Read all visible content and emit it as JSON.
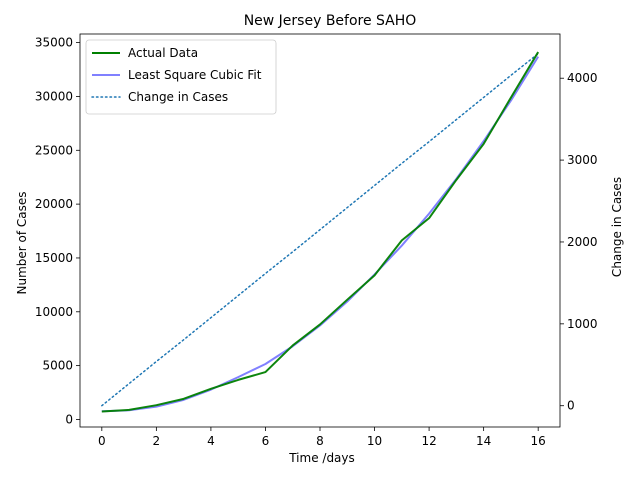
{
  "chart_data": {
    "type": "line",
    "title": "New Jersey Before SAHO",
    "xlabel": "Time /days",
    "ylabel": "Number of Cases",
    "y2label": "Change in Cases",
    "xlim": [
      -0.8,
      16.8
    ],
    "ylim": [
      -700,
      35800
    ],
    "y2lim": [
      -260,
      4540
    ],
    "xticks": [
      0,
      2,
      4,
      6,
      8,
      10,
      12,
      14,
      16
    ],
    "yticks": [
      0,
      5000,
      10000,
      15000,
      20000,
      25000,
      30000,
      35000
    ],
    "y2ticks": [
      0,
      1000,
      2000,
      3000,
      4000
    ],
    "grid": false,
    "legend_position": "top-left",
    "x": [
      0,
      1,
      2,
      3,
      4,
      5,
      6,
      7,
      8,
      9,
      10,
      11,
      12,
      13,
      14,
      15,
      16
    ],
    "series": [
      {
        "name": "Actual Data",
        "axis": "left",
        "color": "#008000",
        "style": "solid",
        "values": [
          742,
          890,
          1327,
          1914,
          2844,
          3675,
          4402,
          6876,
          8825,
          11124,
          13386,
          16636,
          18696,
          22255,
          25590,
          29895,
          34124
        ]
      },
      {
        "name": "Least Square Cubic Fit",
        "axis": "left",
        "color": "#8080ff",
        "style": "solid",
        "values": [
          760,
          850,
          1190,
          1820,
          2770,
          3930,
          5150,
          6800,
          8730,
          10950,
          13470,
          16150,
          19120,
          22350,
          25850,
          29620,
          33700
        ]
      },
      {
        "name": "Change in Cases",
        "axis": "right",
        "color": "#1f77b4",
        "style": "dotted",
        "values": [
          0,
          270,
          540,
          805,
          1075,
          1345,
          1615,
          1880,
          2150,
          2420,
          2690,
          2960,
          3225,
          3495,
          3765,
          4035,
          4300
        ]
      }
    ]
  }
}
